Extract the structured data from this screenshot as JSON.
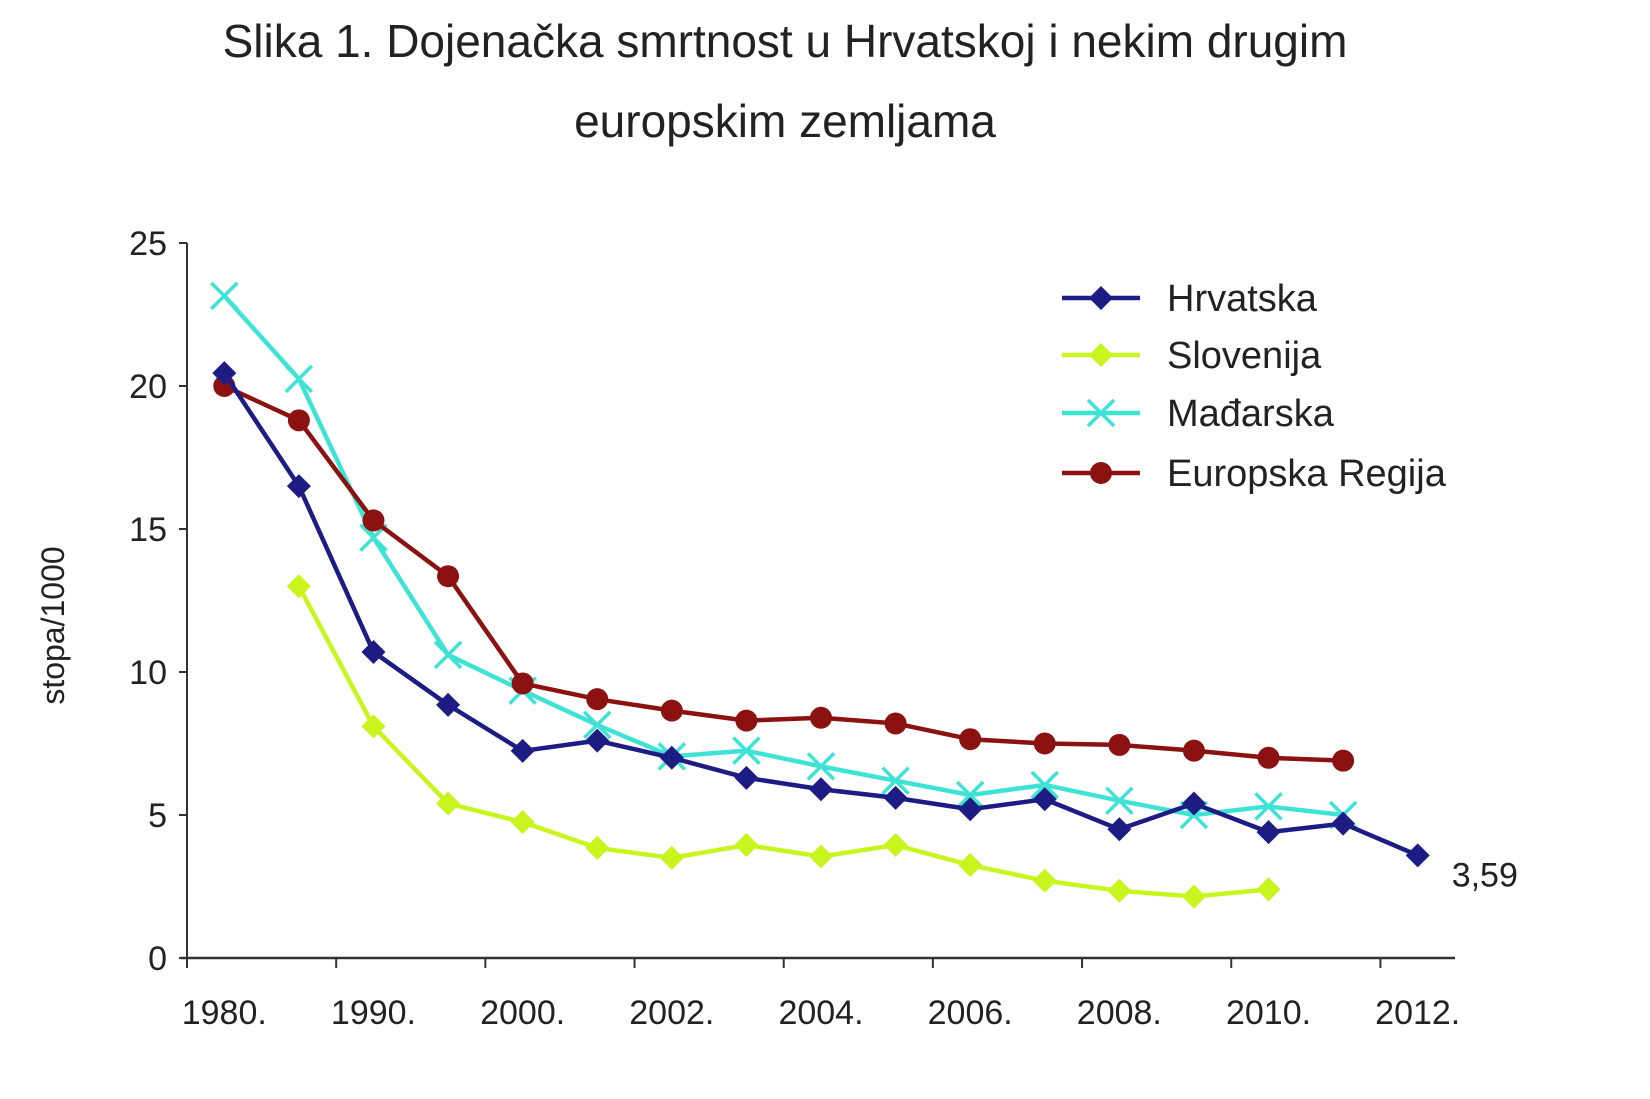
{
  "chart_data": {
    "type": "line",
    "title_line1": "Slika 1. Dojenačka smrtnost u Hrvatskoj i nekim drugim",
    "title_line2": "europskim zemljama",
    "ylabel": "stopa/1000",
    "xlabel": "",
    "ylim": [
      0,
      25
    ],
    "yticks": [
      0,
      5,
      10,
      15,
      20,
      25
    ],
    "categories": [
      "1980.",
      "",
      "1990.",
      "",
      "2000.",
      "",
      "2002.",
      "",
      "2004.",
      "",
      "2006.",
      "",
      "2008.",
      "",
      "2010.",
      "",
      "2012."
    ],
    "legend_position": "top-right",
    "grid": false,
    "series": [
      {
        "name": "Hrvatska",
        "color": "#1c1c84",
        "marker": "diamond",
        "values": [
          20.45,
          16.5,
          10.7,
          8.85,
          7.24,
          7.6,
          7.0,
          6.3,
          5.9,
          5.6,
          5.2,
          5.55,
          4.5,
          5.4,
          4.4,
          4.7,
          3.59
        ]
      },
      {
        "name": "Slovenija",
        "color": "#c8f51e",
        "marker": "diamond",
        "values": [
          null,
          13.0,
          8.1,
          5.4,
          4.75,
          3.85,
          3.5,
          3.95,
          3.55,
          3.95,
          3.25,
          2.7,
          2.35,
          2.15,
          2.4,
          null,
          null
        ]
      },
      {
        "name": "Mađarska",
        "color": "#3fe3d6",
        "marker": "x",
        "values": [
          23.15,
          20.25,
          14.7,
          10.6,
          9.35,
          8.15,
          7.05,
          7.25,
          6.7,
          6.2,
          5.7,
          6.05,
          5.5,
          5.0,
          5.3,
          5.0,
          null
        ]
      },
      {
        "name": "Europska Regija",
        "color": "#8c1212",
        "marker": "circle",
        "values": [
          20.0,
          18.8,
          15.3,
          13.35,
          9.6,
          9.05,
          8.65,
          8.3,
          8.4,
          8.2,
          7.65,
          7.5,
          7.45,
          7.25,
          7.0,
          6.9,
          null
        ]
      }
    ],
    "annotations": [
      {
        "text": "3,59",
        "series": "Hrvatska",
        "category_index": 16
      }
    ]
  }
}
